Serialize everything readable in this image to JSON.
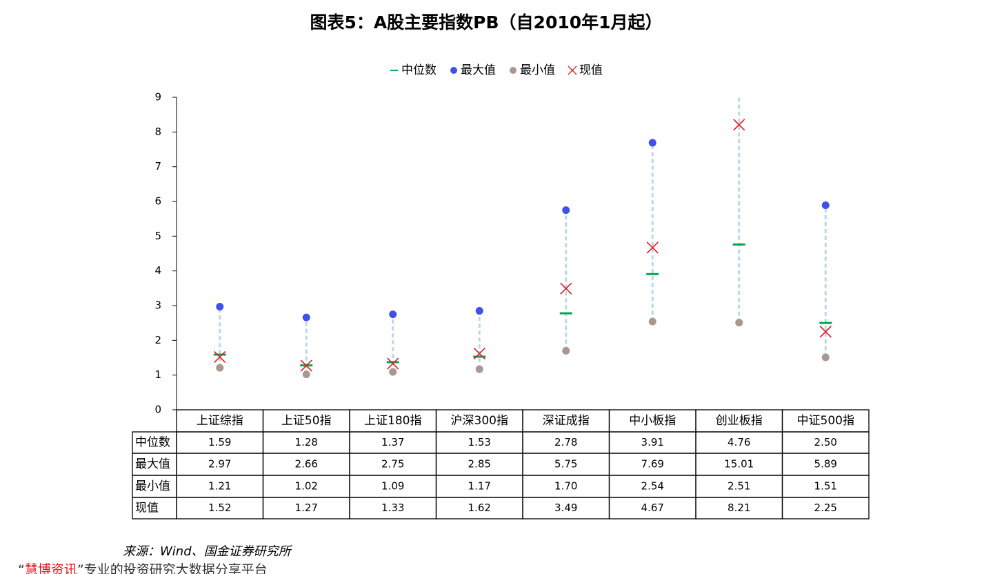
{
  "chart_data": {
    "type": "range-dot",
    "title": "图表5：A股主要指数PB（自2010年1月起）",
    "categories": [
      "上证综指",
      "上证50指",
      "上证180指",
      "沪深300指",
      "深证成指",
      "中小板指",
      "创业板指",
      "中证500指"
    ],
    "series": [
      {
        "name": "中位数",
        "color": "#00a650",
        "marker": "dash",
        "values": [
          1.59,
          1.28,
          1.37,
          1.53,
          2.78,
          3.91,
          4.76,
          2.5
        ],
        "value_labels": [
          "1.59",
          "1.28",
          "1.37",
          "1.53",
          "2.78",
          "3.91",
          "4.76",
          "2.50"
        ]
      },
      {
        "name": "最大值",
        "color": "#3f51e8",
        "marker": "circle",
        "values": [
          2.97,
          2.66,
          2.75,
          2.85,
          5.75,
          7.69,
          15.01,
          5.89
        ],
        "value_labels": [
          "2.97",
          "2.66",
          "2.75",
          "2.85",
          "5.75",
          "7.69",
          "15.01",
          "5.89"
        ]
      },
      {
        "name": "最小值",
        "color": "#a89890",
        "marker": "circle",
        "values": [
          1.21,
          1.02,
          1.09,
          1.17,
          1.7,
          2.54,
          2.51,
          1.51
        ],
        "value_labels": [
          "1.21",
          "1.02",
          "1.09",
          "1.17",
          "1.70",
          "2.54",
          "2.51",
          "1.51"
        ]
      },
      {
        "name": "现值",
        "color": "#e8161b",
        "marker": "x",
        "values": [
          1.52,
          1.27,
          1.33,
          1.62,
          3.49,
          4.67,
          8.21,
          2.25
        ],
        "value_labels": [
          "1.52",
          "1.27",
          "1.33",
          "1.62",
          "3.49",
          "4.67",
          "8.21",
          "2.25"
        ]
      }
    ],
    "range_color": "#b8d8ea",
    "ylim": [
      0,
      9
    ],
    "yticks": [
      0,
      1,
      2,
      3,
      4,
      5,
      6,
      7,
      8,
      9
    ],
    "legend": "top",
    "source": "来源：Wind、国金证券研究所",
    "footer": [
      "“",
      "慧博资讯",
      "”专业的投资研究大数据分享平台"
    ]
  }
}
